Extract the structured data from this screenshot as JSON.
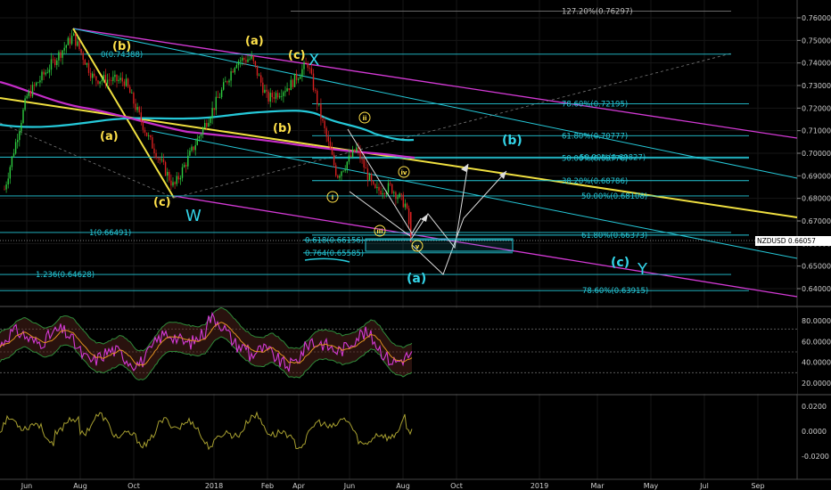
{
  "symbol": "NZDUSD",
  "current_price": "0.66057",
  "price_axis": [
    "0.76000",
    "0.75000",
    "0.74000",
    "0.73000",
    "0.72000",
    "0.71000",
    "0.70000",
    "0.69000",
    "0.68000",
    "0.67000",
    "0.66000",
    "0.65000",
    "0.64000"
  ],
  "rsi_axis": [
    "80.0000",
    "60.0000",
    "40.0000",
    "20.0000"
  ],
  "osc_axis": [
    "0.0200",
    "0.0000",
    "-0.0200"
  ],
  "time_axis": [
    "Jun",
    "Aug",
    "Oct",
    "2018",
    "Feb",
    "Apr",
    "Jun",
    "Aug",
    "Oct",
    "2019",
    "Mar",
    "May",
    "Jul",
    "Sep"
  ],
  "fib_levels": [
    {
      "label": "127.20%(0.76297)",
      "price": 0.76297,
      "color": "grey"
    },
    {
      "label": "0(0.74388)",
      "price": 0.74388,
      "color": "cyan"
    },
    {
      "label": "78.60%(0.72195)",
      "price": 0.72195,
      "color": "cyan"
    },
    {
      "label": "61.80%(0.70777)",
      "price": 0.70777,
      "color": "cyan"
    },
    {
      "label": "50.00%(0.69827)",
      "price": 0.69827,
      "color": "cyan"
    },
    {
      "label": "50.00%(0.69776)",
      "price": 0.69776,
      "color": "cyan"
    },
    {
      "label": "38.20%(0.68786)",
      "price": 0.68786,
      "color": "cyan"
    },
    {
      "label": "50.00%(0.68108)",
      "price": 0.68108,
      "color": "cyan"
    },
    {
      "label": "1(0.66491)",
      "price": 0.66491,
      "color": "cyan"
    },
    {
      "label": "61.80%(0.66373)",
      "price": 0.66373,
      "color": "cyan"
    },
    {
      "label": "0.618(0.66156)",
      "price": 0.66156,
      "color": "cyan"
    },
    {
      "label": "0.764(0.65585)",
      "price": 0.65585,
      "color": "cyan"
    },
    {
      "label": "1.236(0.64628)",
      "price": 0.64628,
      "color": "cyan"
    },
    {
      "label": "78.60%(0.63915)",
      "price": 0.63915,
      "color": "cyan"
    }
  ],
  "wave_labels": [
    {
      "text": "(b)",
      "style": "yellow"
    },
    {
      "text": "(a)",
      "style": "yellow"
    },
    {
      "text": "(c)",
      "style": "yellow"
    },
    {
      "text": "W",
      "style": "cyan-big"
    },
    {
      "text": "(a)",
      "style": "yellow"
    },
    {
      "text": "(b)",
      "style": "yellow"
    },
    {
      "text": "(c)",
      "style": "yellow"
    },
    {
      "text": "X",
      "style": "cyan-big"
    },
    {
      "text": "ii",
      "style": "small"
    },
    {
      "text": "i",
      "style": "small"
    },
    {
      "text": "iii",
      "style": "small"
    },
    {
      "text": "iv",
      "style": "small"
    },
    {
      "text": "v",
      "style": "small"
    },
    {
      "text": "(b)",
      "style": "cyan"
    },
    {
      "text": "(a)",
      "style": "cyan"
    },
    {
      "text": "(c)",
      "style": "cyan"
    },
    {
      "text": "Y",
      "style": "cyan-big"
    }
  ],
  "chart_data": {
    "type": "line",
    "title": "",
    "xlabel": "",
    "ylabel": "",
    "ylim": [
      0.634,
      0.768
    ],
    "x": [
      "Jun",
      "Aug",
      "Oct",
      "2018",
      "Feb",
      "Apr",
      "Jun",
      "Aug"
    ],
    "series": [
      {
        "values": [
          0.685,
          0.753,
          0.725,
          0.685,
          0.74,
          0.74,
          0.699,
          0.6606
        ]
      }
    ],
    "indicators": {
      "rsi_ylim": [
        15,
        88
      ],
      "osc_ylim": [
        -0.03,
        0.03
      ]
    }
  },
  "colors": {
    "background": "#000000",
    "cyan": "#25c8d8",
    "magenta": "#d43ad6",
    "yellow": "#f0e040",
    "bull": "#2ecc40",
    "bear": "#d62020"
  }
}
